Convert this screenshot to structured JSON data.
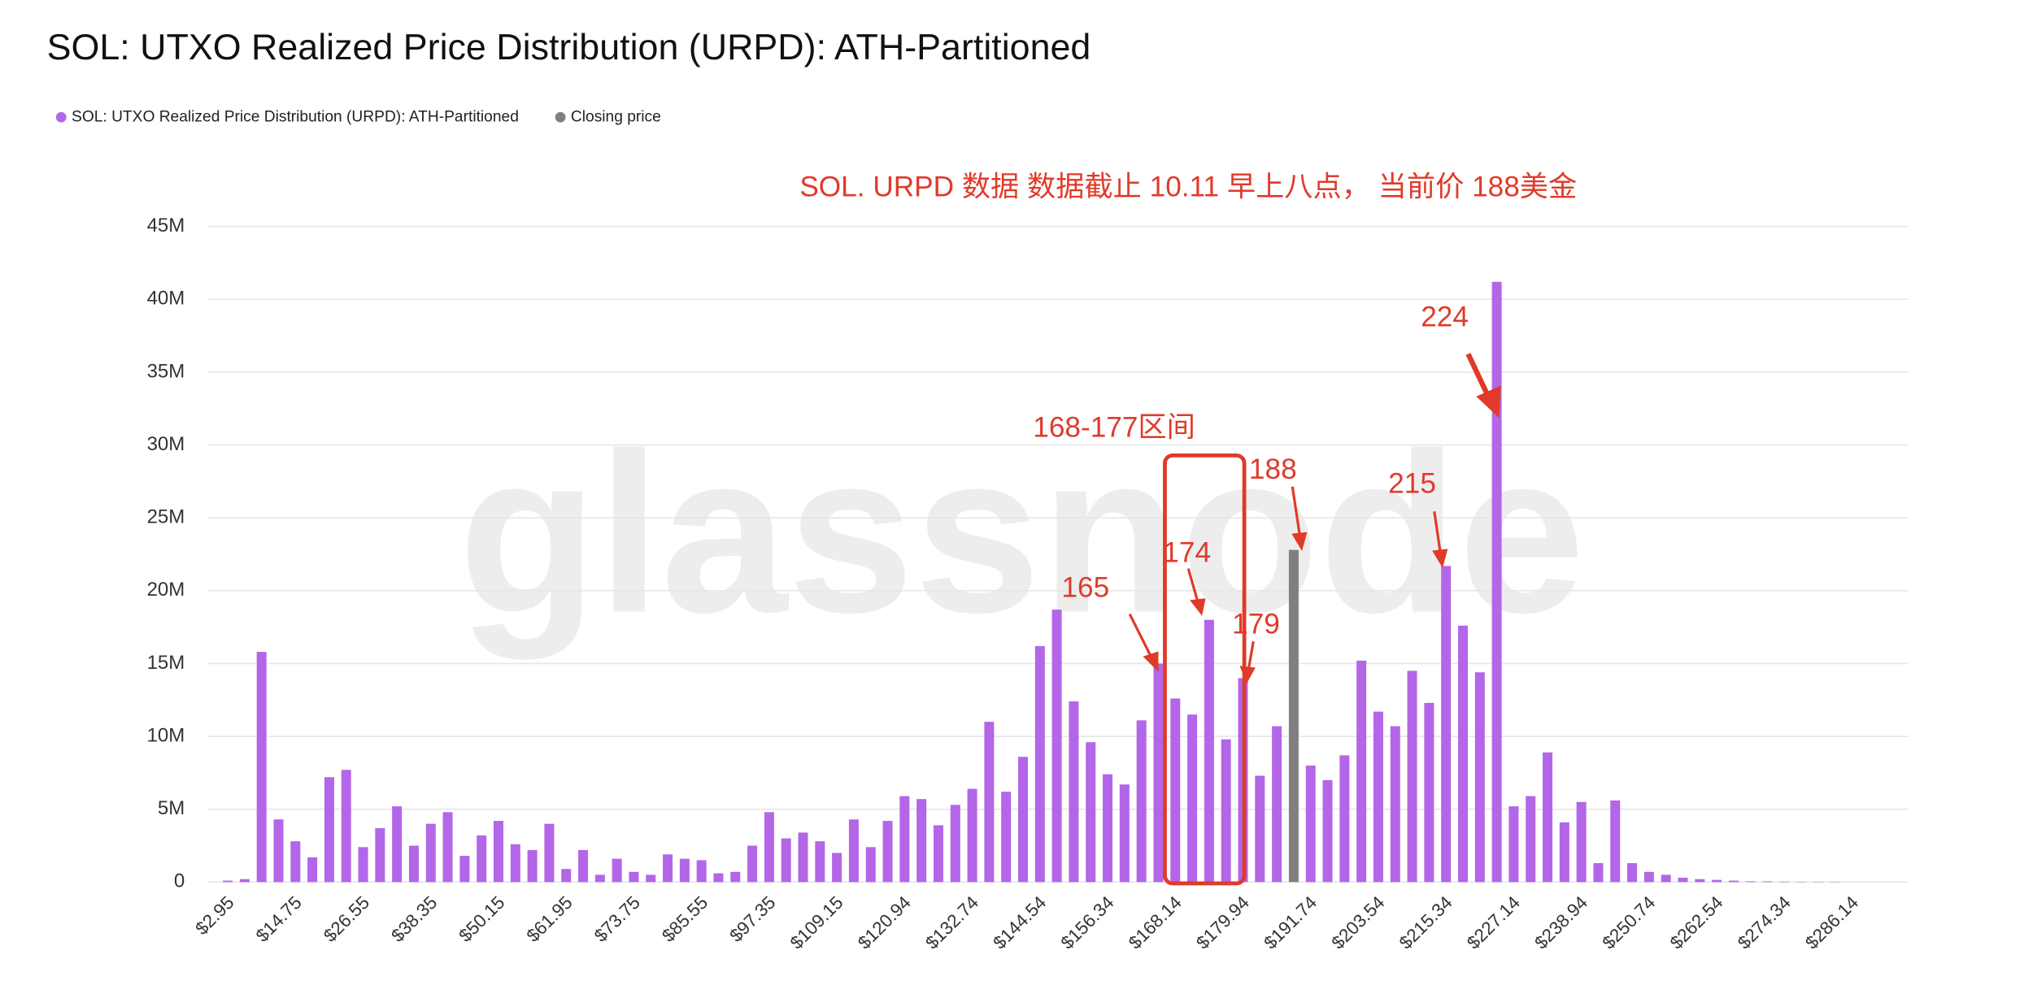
{
  "chart_data": {
    "type": "bar",
    "title": "SOL: UTXO Realized Price Distribution (URPD): ATH-Partitioned",
    "watermark": "glassnode",
    "legend": "top-left",
    "grid": true,
    "annotations": [
      "SOL. URPD 数据 数据截止 10.11 早上八点， 当前价 188美金",
      "168-177区间",
      "165",
      "174",
      "179",
      "188",
      "215",
      "224"
    ],
    "categories": [
      "$2.95",
      null,
      null,
      null,
      "$14.75",
      null,
      null,
      null,
      "$26.55",
      null,
      null,
      null,
      "$38.35",
      null,
      null,
      null,
      "$50.15",
      null,
      null,
      null,
      "$61.95",
      null,
      null,
      null,
      "$73.75",
      null,
      null,
      null,
      "$85.55",
      null,
      null,
      null,
      "$97.35",
      null,
      null,
      null,
      "$109.15",
      null,
      null,
      null,
      "$120.94",
      null,
      null,
      null,
      "$132.74",
      null,
      null,
      null,
      "$144.54",
      null,
      null,
      null,
      "$156.34",
      null,
      null,
      null,
      "$168.14",
      null,
      null,
      null,
      "$179.94",
      null,
      null,
      null,
      "$191.74",
      null,
      null,
      null,
      "$203.54",
      null,
      null,
      null,
      "$215.34",
      null,
      null,
      null,
      "$227.14",
      null,
      null,
      null,
      "$238.94",
      null,
      null,
      null,
      "$250.74",
      null,
      null,
      null,
      "$262.54",
      null,
      null,
      null,
      "$274.34",
      null,
      null,
      null,
      "$286.14",
      null,
      null,
      null
    ],
    "ylim": [
      0,
      45000000
    ],
    "yticks": [
      0,
      {
        "value": 5000000,
        "label": "5M"
      },
      {
        "value": 10000000,
        "label": "10M"
      },
      {
        "value": 15000000,
        "label": "15M"
      },
      {
        "value": 20000000,
        "label": "20M"
      },
      {
        "value": 25000000,
        "label": "25M"
      },
      {
        "value": 30000000,
        "label": "30M"
      },
      {
        "value": 35000000,
        "label": "35M"
      },
      {
        "value": 40000000,
        "label": "40M"
      },
      {
        "value": 45000000,
        "label": "45M"
      }
    ],
    "series": [
      {
        "name": "SOL: UTXO Realized Price Distribution (URPD): ATH-Partitioned",
        "color": "#b366e8",
        "values": [
          100000,
          200000,
          15800000,
          4300000,
          2800000,
          1700000,
          7200000,
          7700000,
          2400000,
          3700000,
          5200000,
          2500000,
          4000000,
          4800000,
          1800000,
          3200000,
          4200000,
          2600000,
          2200000,
          4000000,
          900000,
          2200000,
          500000,
          1600000,
          700000,
          500000,
          1900000,
          1600000,
          1500000,
          600000,
          700000,
          2500000,
          4800000,
          3000000,
          3400000,
          2800000,
          2000000,
          4300000,
          2400000,
          4200000,
          5900000,
          5700000,
          3900000,
          5300000,
          6400000,
          11000000,
          6200000,
          8600000,
          16200000,
          18700000,
          12400000,
          9600000,
          7400000,
          6700000,
          11100000,
          15000000,
          12600000,
          11500000,
          18000000,
          9800000,
          14000000,
          7300000,
          10700000,
          null,
          8000000,
          7000000,
          8700000,
          15200000,
          11700000,
          10700000,
          14500000,
          12300000,
          21700000,
          17600000,
          14400000,
          41200000,
          5200000,
          5900000,
          8900000,
          4100000,
          5500000,
          1300000,
          5600000,
          1300000,
          700000,
          500000,
          300000,
          200000,
          150000,
          100000,
          50000,
          50000,
          30000,
          20000,
          20000,
          20000,
          0,
          0,
          0,
          0
        ]
      },
      {
        "name": "Closing price",
        "color": "#808080",
        "values": [
          null,
          null,
          null,
          null,
          null,
          null,
          null,
          null,
          null,
          null,
          null,
          null,
          null,
          null,
          null,
          null,
          null,
          null,
          null,
          null,
          null,
          null,
          null,
          null,
          null,
          null,
          null,
          null,
          null,
          null,
          null,
          null,
          null,
          null,
          null,
          null,
          null,
          null,
          null,
          null,
          null,
          null,
          null,
          null,
          null,
          null,
          null,
          null,
          null,
          null,
          null,
          null,
          null,
          null,
          null,
          null,
          null,
          null,
          null,
          null,
          null,
          null,
          null,
          22800000,
          null,
          null,
          null,
          null,
          null,
          null,
          null,
          null,
          null,
          null,
          null,
          null,
          null,
          null,
          null,
          null,
          null,
          null,
          null,
          null,
          null,
          null,
          null,
          null,
          null,
          null,
          null,
          null,
          null,
          null,
          null,
          null,
          null,
          null,
          null,
          null
        ]
      }
    ]
  }
}
